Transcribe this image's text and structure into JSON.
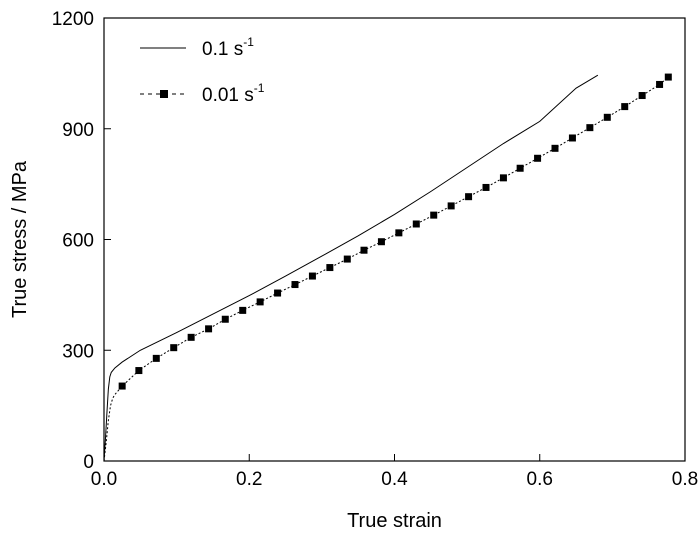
{
  "chart_data": {
    "type": "line",
    "title": "",
    "xlabel": "True strain",
    "ylabel": "True stress / MPa",
    "xlim": [
      0.0,
      0.8
    ],
    "ylim": [
      0,
      1200
    ],
    "x_ticks": [
      0.0,
      0.2,
      0.4,
      0.6,
      0.8
    ],
    "x_tick_labels": [
      "0.0",
      "0.2",
      "0.4",
      "0.6",
      "0.8"
    ],
    "y_ticks": [
      0,
      300,
      600,
      900,
      1200
    ],
    "y_tick_labels": [
      "0",
      "300",
      "600",
      "900",
      "1200"
    ],
    "grid": false,
    "legend_position": "top-left",
    "legend_entries": [
      {
        "base": "0.1 s",
        "exp": "-1",
        "style": "solid line"
      },
      {
        "base": "0.01 s",
        "exp": "-1",
        "style": "dashed line with square markers"
      }
    ],
    "series": [
      {
        "name": "0.1 s-1",
        "style": "solid",
        "color": "#000000",
        "x": [
          0.0,
          0.002,
          0.004,
          0.006,
          0.008,
          0.01,
          0.015,
          0.025,
          0.05,
          0.1,
          0.15,
          0.2,
          0.25,
          0.3,
          0.35,
          0.4,
          0.45,
          0.5,
          0.55,
          0.6,
          0.65,
          0.68
        ],
        "y": [
          0,
          60,
          130,
          195,
          228,
          240,
          252,
          268,
          300,
          348,
          398,
          448,
          501,
          555,
          610,
          668,
          730,
          795,
          860,
          920,
          1010,
          1045
        ]
      },
      {
        "name": "0.01 s-1",
        "style": "dashed-markers",
        "color": "#000000",
        "x": [
          0.0,
          0.003,
          0.006,
          0.009,
          0.012,
          0.015,
          0.025,
          0.048,
          0.072,
          0.096,
          0.12,
          0.144,
          0.167,
          0.191,
          0.215,
          0.239,
          0.263,
          0.287,
          0.311,
          0.335,
          0.358,
          0.382,
          0.406,
          0.43,
          0.454,
          0.478,
          0.502,
          0.526,
          0.55,
          0.573,
          0.597,
          0.621,
          0.645,
          0.669,
          0.693,
          0.717,
          0.741,
          0.765,
          0.777
        ],
        "y": [
          0,
          50,
          110,
          150,
          170,
          180,
          203,
          245,
          278,
          307,
          335,
          358,
          384,
          408,
          431,
          455,
          478,
          501,
          524,
          547,
          571,
          594,
          618,
          642,
          666,
          691,
          716,
          741,
          767,
          793,
          820,
          847,
          875,
          903,
          931,
          960,
          990,
          1020,
          1040
        ]
      }
    ]
  }
}
